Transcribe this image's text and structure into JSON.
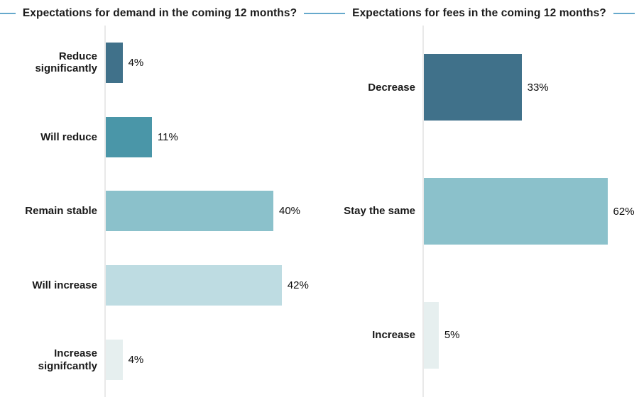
{
  "style": {
    "background": "#ffffff",
    "title_rule_color": "#66A9CC",
    "axis_line_color": "#e9e9e9",
    "title_text_color": "#1b1b1b",
    "label_text_color": "#1a1a1a",
    "value_text_color": "#0c0c0c"
  },
  "chart_data": [
    {
      "type": "bar",
      "orientation": "horizontal",
      "title": "Expectations for demand in the coming 12 months?",
      "categories": [
        "Reduce significantly",
        "Will reduce",
        "Remain stable",
        "Will increase",
        "Increase signifcantly"
      ],
      "values": [
        4,
        11,
        40,
        42,
        4
      ],
      "value_labels": [
        "4%",
        "11%",
        "40%",
        "42%",
        "4%"
      ],
      "colors": [
        "#40718A",
        "#4A96A8",
        "#8BC1CB",
        "#BEDCE2",
        "#E6EFEF"
      ],
      "xlabel": "",
      "ylabel": "",
      "x_axis_visible": false,
      "gridlines": false,
      "legend": "none",
      "baseline": "vertical-line-left",
      "data_label_position": "right-of-bar"
    },
    {
      "type": "bar",
      "orientation": "horizontal",
      "title": "Expectations for fees in the coming 12 months?",
      "categories": [
        "Decrease",
        "Stay the same",
        "Increase"
      ],
      "values": [
        33,
        62,
        5
      ],
      "value_labels": [
        "33%",
        "62%",
        "5%"
      ],
      "colors": [
        "#40718A",
        "#8BC1CB",
        "#E6EFEF"
      ],
      "xlabel": "",
      "ylabel": "",
      "x_axis_visible": false,
      "gridlines": false,
      "legend": "none",
      "baseline": "vertical-line-left",
      "data_label_position": "right-of-bar"
    }
  ]
}
